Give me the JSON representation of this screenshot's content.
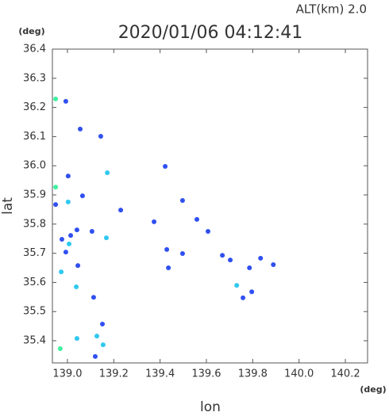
{
  "chart_data": {
    "type": "scatter",
    "title": "2020/01/06 04:12:41",
    "subtitle": "ALT(km) 2.0",
    "x_label": "lon",
    "y_label": "lat",
    "x_unit": "(deg)",
    "y_unit": "(deg)",
    "xlim": [
      138.935,
      140.296
    ],
    "ylim": [
      35.324,
      36.4
    ],
    "xticks": [
      {
        "value": 139,
        "label": "139.0"
      },
      139.2,
      139.4,
      139.6,
      139.8,
      {
        "value": 140,
        "label": "140.0"
      },
      140.2
    ],
    "yticks": [
      36.4,
      36.3,
      36.2,
      36.1,
      {
        "value": 36,
        "label": "36.0"
      },
      35.9,
      35.8,
      35.7,
      35.6,
      35.5,
      35.4
    ],
    "series": [
      {
        "color": "#3050f0",
        "x": [
          138.993,
          139.055,
          139.144,
          139.003,
          139.065,
          139.041,
          139.014,
          138.976,
          138.993,
          139.045,
          139.113,
          139.151,
          139.12,
          139.422,
          139.497,
          139.559,
          139.607,
          139.669,
          139.703,
          139.786,
          139.834,
          139.889,
          139.796,
          139.758,
          139.436,
          139.497,
          139.429,
          139.374,
          139.23,
          139.106,
          138.949
        ],
        "values": [
          36.221,
          36.126,
          36.101,
          35.965,
          35.897,
          35.78,
          35.761,
          35.748,
          35.704,
          35.658,
          35.549,
          35.457,
          35.346,
          35.998,
          35.881,
          35.816,
          35.775,
          35.693,
          35.677,
          35.65,
          35.683,
          35.661,
          35.568,
          35.547,
          35.65,
          35.699,
          35.713,
          35.808,
          35.848,
          35.775,
          35.867
        ]
      },
      {
        "color": "#30c8f0",
        "x": [
          139.038,
          138.973,
          139.041,
          139.007,
          139.003,
          139.127,
          139.154,
          139.731,
          139.172,
          139.168
        ],
        "values": [
          35.585,
          35.636,
          35.408,
          35.732,
          35.876,
          35.416,
          35.386,
          35.59,
          35.976,
          35.753
        ]
      },
      {
        "color": "#40f0a0",
        "x": [
          138.949,
          138.969,
          138.949
        ],
        "values": [
          35.927,
          35.373,
          36.229
        ]
      }
    ]
  }
}
